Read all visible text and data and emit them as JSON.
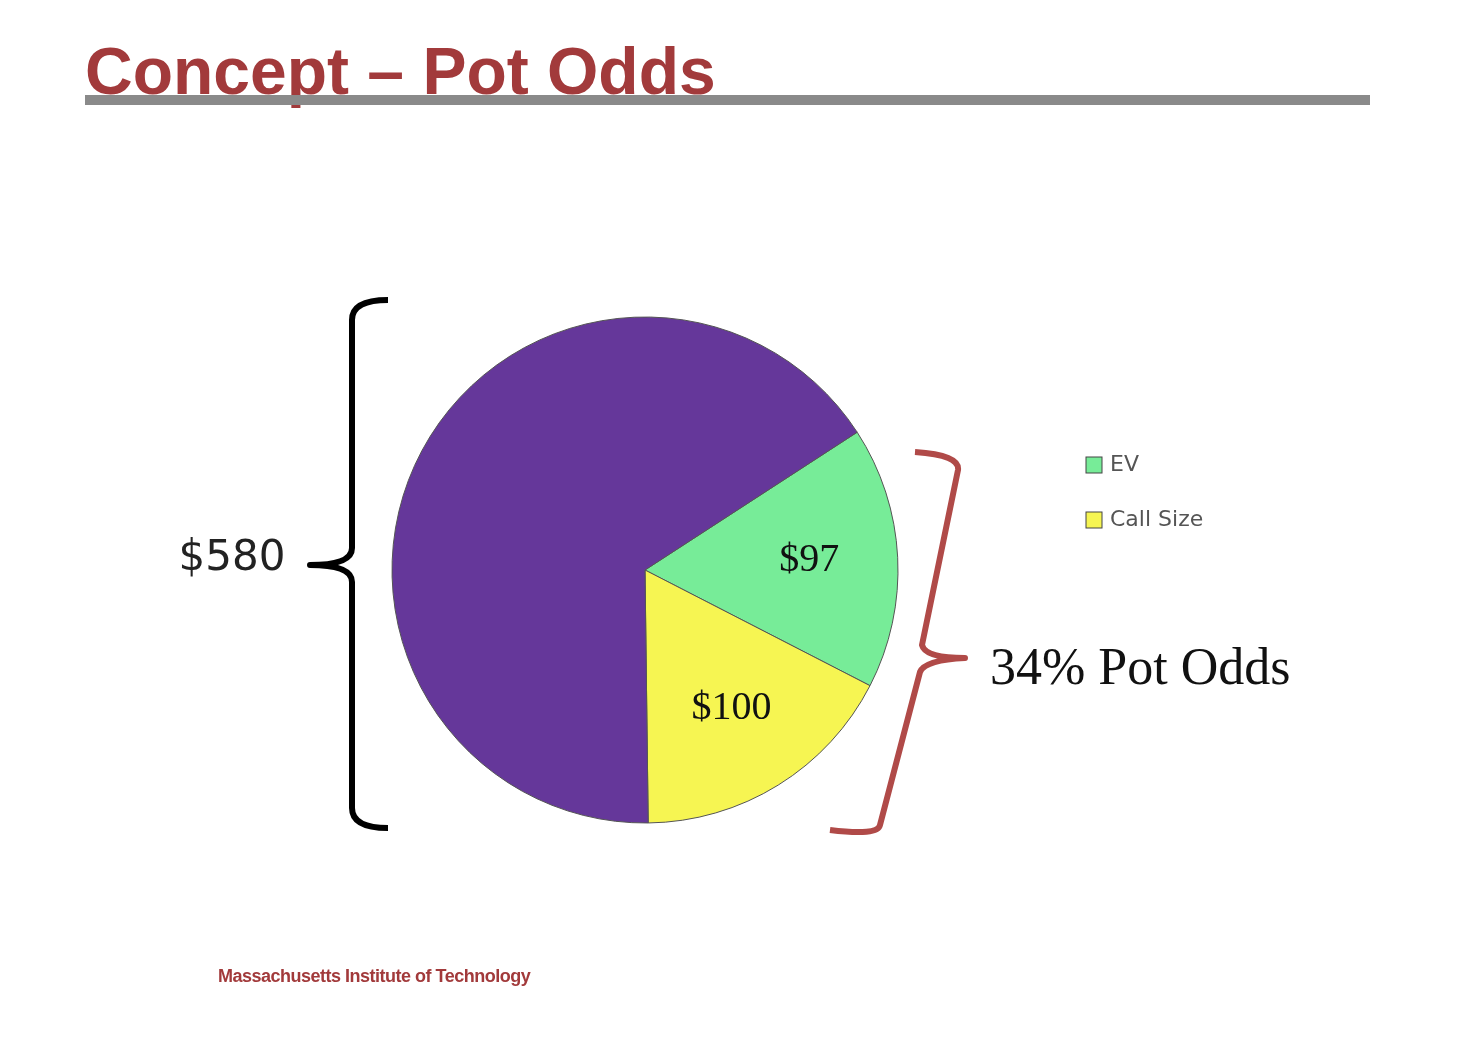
{
  "chart_data": {
    "type": "pie",
    "title": "Concept – Pot Odds",
    "categories": [
      "EV",
      "Call Size",
      null
    ],
    "values": [
      97,
      100,
      383
    ],
    "colors": [
      "#77ec98",
      "#f6f552",
      "#65379a"
    ],
    "value_labels": [
      "$97",
      "$100",
      null
    ],
    "legend": "right",
    "annotations": [
      "$580",
      "34% Pot Odds",
      "Massachusetts Institute of Technology"
    ]
  }
}
